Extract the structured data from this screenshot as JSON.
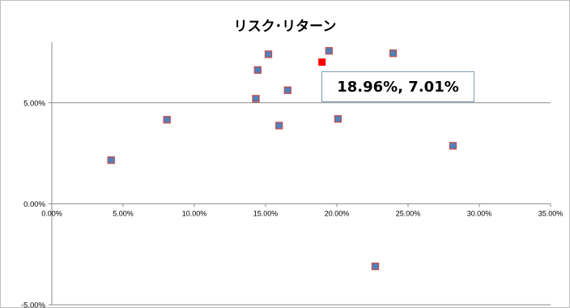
{
  "chart_data": {
    "type": "scatter",
    "title": "リスク･リターン",
    "xlabel": "",
    "ylabel": "",
    "xlim": [
      0,
      0.35
    ],
    "ylim": [
      -0.05,
      0.08
    ],
    "x_ticks": [
      0,
      0.05,
      0.1,
      0.15,
      0.2,
      0.25,
      0.3,
      0.35
    ],
    "x_tick_labels": [
      "0.00%",
      "5.00%",
      "10.00%",
      "15.00%",
      "20.00%",
      "25.00%",
      "30.00%",
      "35.00%"
    ],
    "y_ticks": [
      -0.05,
      0,
      0.05
    ],
    "y_tick_labels": [
      "-5.00%",
      "0.00%",
      "5.00%"
    ],
    "grid": "horizontal major",
    "legend": "none",
    "series": [
      {
        "color": "#4f81bd",
        "marker_border": "#c0504d",
        "points": [
          {
            "x": 0.0416,
            "y": 0.0216
          },
          {
            "x": 0.0808,
            "y": 0.0416
          },
          {
            "x": 0.1432,
            "y": 0.052
          },
          {
            "x": 0.1445,
            "y": 0.0662
          },
          {
            "x": 0.152,
            "y": 0.074
          },
          {
            "x": 0.1595,
            "y": 0.0387
          },
          {
            "x": 0.1655,
            "y": 0.0562
          },
          {
            "x": 0.1945,
            "y": 0.0757
          },
          {
            "x": 0.2008,
            "y": 0.042
          },
          {
            "x": 0.227,
            "y": -0.031
          },
          {
            "x": 0.2395,
            "y": 0.0745
          },
          {
            "x": 0.2815,
            "y": 0.0287
          }
        ]
      },
      {
        "color": "#ff0000",
        "points": [
          {
            "x": 0.1896,
            "y": 0.0701
          }
        ]
      }
    ],
    "annotation": "18.96%, 7.01%"
  }
}
